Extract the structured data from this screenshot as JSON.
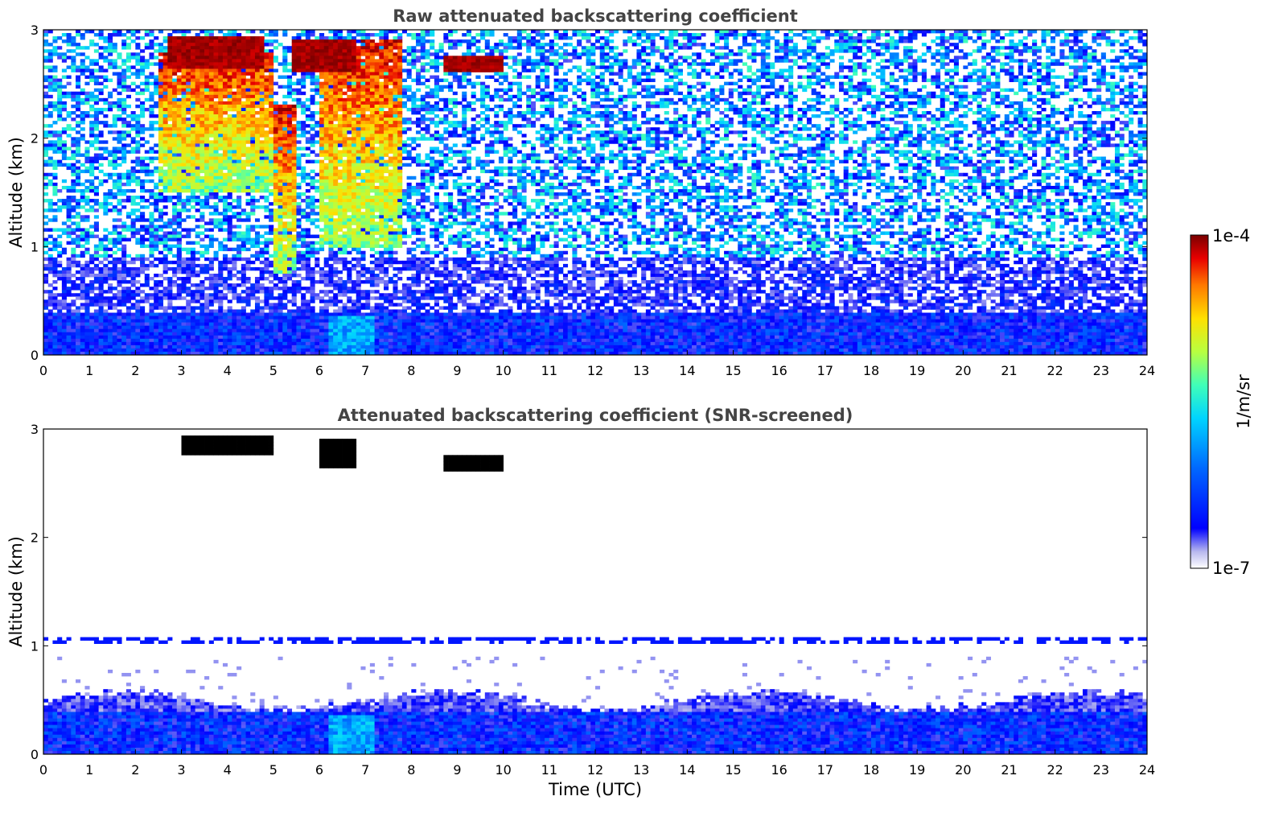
{
  "chart_data": [
    {
      "type": "heatmap",
      "title": "Raw attenuated backscattering coefficient",
      "xlabel": "",
      "ylabel": "Altitude (km)",
      "xlim": [
        0,
        24
      ],
      "ylim": [
        0,
        3
      ],
      "x_ticks": [
        "0",
        "1",
        "2",
        "3",
        "4",
        "5",
        "6",
        "7",
        "8",
        "9",
        "10",
        "11",
        "12",
        "13",
        "14",
        "15",
        "16",
        "17",
        "18",
        "19",
        "20",
        "21",
        "22",
        "23",
        "24"
      ],
      "y_ticks": [
        "0",
        "1",
        "2",
        "3"
      ],
      "features": [
        {
          "feature": "noisy background",
          "time_utc": [
            0,
            24
          ],
          "altitude_km": [
            0.5,
            3.0
          ],
          "level": "low, speckled"
        },
        {
          "feature": "boundary layer",
          "time_utc": [
            0,
            24
          ],
          "altitude_km": [
            0,
            0.4
          ],
          "level": "moderate"
        },
        {
          "feature": "cirrus cloud top",
          "time_utc": [
            2.7,
            4.8
          ],
          "altitude_km": [
            2.65,
            2.95
          ],
          "level": "saturated"
        },
        {
          "feature": "cirrus cloud top",
          "time_utc": [
            5.4,
            6.8
          ],
          "altitude_km": [
            2.6,
            2.9
          ],
          "level": "saturated"
        },
        {
          "feature": "cloud fallstreak",
          "time_utc": [
            2.5,
            5.0
          ],
          "altitude_km": [
            1.5,
            2.8
          ],
          "level": "high"
        },
        {
          "feature": "cloud fallstreak",
          "time_utc": [
            5.0,
            5.5
          ],
          "altitude_km": [
            0.75,
            2.3
          ],
          "level": "high"
        },
        {
          "feature": "cloud fallstreak",
          "time_utc": [
            6.0,
            7.8
          ],
          "altitude_km": [
            1.0,
            2.9
          ],
          "level": "high"
        },
        {
          "feature": "thin cloud",
          "time_utc": [
            8.7,
            10.0
          ],
          "altitude_km": [
            2.6,
            2.75
          ],
          "level": "saturated"
        }
      ]
    },
    {
      "type": "heatmap",
      "title": "Attenuated backscattering coefficient (SNR-screened)",
      "xlabel": "Time (UTC)",
      "ylabel": "Altitude (km)",
      "xlim": [
        0,
        24
      ],
      "ylim": [
        0,
        3
      ],
      "x_ticks": [
        "0",
        "1",
        "2",
        "3",
        "4",
        "5",
        "6",
        "7",
        "8",
        "9",
        "10",
        "11",
        "12",
        "13",
        "14",
        "15",
        "16",
        "17",
        "18",
        "19",
        "20",
        "21",
        "22",
        "23",
        "24"
      ],
      "y_ticks": [
        "0",
        "1",
        "2",
        "3"
      ],
      "features": [
        {
          "feature": "boundary layer",
          "time_utc": [
            0,
            24
          ],
          "altitude_km": [
            0,
            0.5
          ],
          "level": "moderate"
        },
        {
          "feature": "artifact line",
          "time_utc": [
            0,
            24
          ],
          "altitude_km": [
            1.05,
            1.05
          ],
          "level": "low"
        },
        {
          "feature": "cloud top",
          "time_utc": [
            3.0,
            5.0
          ],
          "altitude_km": [
            2.75,
            2.95
          ],
          "level": "above scale"
        },
        {
          "feature": "cloud top",
          "time_utc": [
            6.0,
            6.8
          ],
          "altitude_km": [
            2.65,
            2.9
          ],
          "level": "above scale"
        },
        {
          "feature": "cloud top",
          "time_utc": [
            8.7,
            10.0
          ],
          "altitude_km": [
            2.6,
            2.75
          ],
          "level": "above scale"
        }
      ]
    }
  ],
  "colorbar": {
    "max_label": "1e-4",
    "min_label": "1e-7",
    "unit": "1/m/sr",
    "colormap": [
      "#ffffff",
      "#b8b8ee",
      "#0000ff",
      "#0068ff",
      "#00d4ff",
      "#40ffb8",
      "#b8ff40",
      "#ffe000",
      "#ff7800",
      "#e80000",
      "#7a0000"
    ]
  }
}
